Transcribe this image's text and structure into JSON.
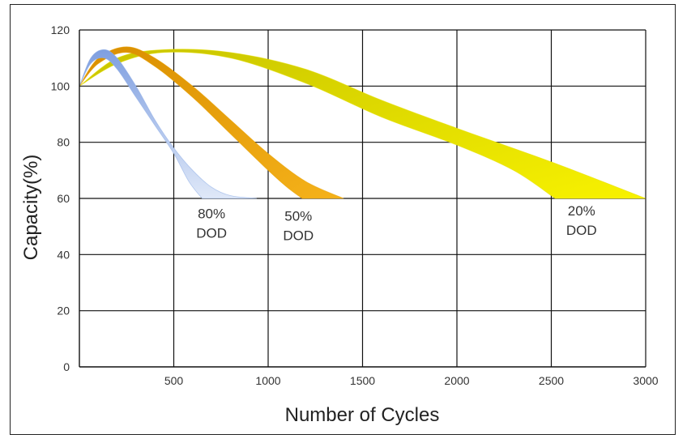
{
  "chart_data": {
    "type": "area",
    "xlabel": "Number of Cycles",
    "ylabel": "Capacity(%)",
    "xlim": [
      0,
      3000
    ],
    "ylim": [
      0,
      120
    ],
    "x_ticks": [
      "500",
      "1000",
      "1500",
      "2000",
      "2500",
      "3000"
    ],
    "y_ticks": [
      "0",
      "20",
      "40",
      "60",
      "80",
      "100",
      "120"
    ],
    "grid": true,
    "series": [
      {
        "name": "80% DOD",
        "color": "#8eaee6",
        "upper": [
          [
            0,
            100
          ],
          [
            60,
            110
          ],
          [
            130,
            113
          ],
          [
            200,
            110
          ],
          [
            300,
            100
          ],
          [
            400,
            88
          ],
          [
            500,
            78
          ],
          [
            600,
            70
          ],
          [
            700,
            64
          ],
          [
            800,
            61
          ],
          [
            940,
            60
          ]
        ],
        "lower": [
          [
            0,
            100
          ],
          [
            60,
            108
          ],
          [
            130,
            110
          ],
          [
            200,
            106
          ],
          [
            300,
            96
          ],
          [
            400,
            86
          ],
          [
            500,
            76
          ],
          [
            580,
            66
          ],
          [
            650,
            60
          ]
        ]
      },
      {
        "name": "50% DOD",
        "color": "#e8a000",
        "upper": [
          [
            0,
            100
          ],
          [
            100,
            110
          ],
          [
            250,
            114
          ],
          [
            400,
            110
          ],
          [
            600,
            100
          ],
          [
            800,
            88
          ],
          [
            1000,
            76
          ],
          [
            1200,
            66
          ],
          [
            1400,
            60
          ]
        ],
        "lower": [
          [
            0,
            100
          ],
          [
            100,
            108
          ],
          [
            250,
            112
          ],
          [
            400,
            107
          ],
          [
            600,
            96
          ],
          [
            800,
            83
          ],
          [
            1000,
            70
          ],
          [
            1100,
            64
          ],
          [
            1180,
            60
          ]
        ]
      },
      {
        "name": "20% DOD",
        "color": "#e6e000",
        "upper": [
          [
            0,
            100
          ],
          [
            200,
            110
          ],
          [
            450,
            113
          ],
          [
            800,
            112
          ],
          [
            1200,
            106
          ],
          [
            1600,
            95
          ],
          [
            2000,
            85
          ],
          [
            2500,
            73
          ],
          [
            3000,
            60
          ]
        ],
        "lower": [
          [
            0,
            100
          ],
          [
            200,
            108
          ],
          [
            450,
            112
          ],
          [
            800,
            110
          ],
          [
            1200,
            101
          ],
          [
            1600,
            89
          ],
          [
            2000,
            79
          ],
          [
            2300,
            70
          ],
          [
            2520,
            60
          ]
        ]
      }
    ],
    "annotations": [
      {
        "lines": [
          "80%",
          "DOD"
        ],
        "x": 700,
        "y": 53
      },
      {
        "lines": [
          "50%",
          "DOD"
        ],
        "x": 1160,
        "y": 52
      },
      {
        "lines": [
          "20%",
          "DOD"
        ],
        "x": 2660,
        "y": 54
      }
    ]
  }
}
